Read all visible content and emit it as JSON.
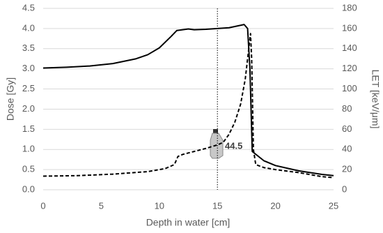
{
  "chart_data": {
    "type": "line",
    "xlabel": "Depth in water [cm]",
    "ylabel": "Dose [Gy]",
    "y2label": "LET [keV/μm]",
    "xlim": [
      0,
      25
    ],
    "xticks": [
      0,
      5,
      10,
      15,
      20,
      25
    ],
    "ylim": [
      0,
      4.5
    ],
    "yticks": [
      {
        "value": 0,
        "label": "0.0"
      },
      {
        "value": 0.5,
        "label": "0.5"
      },
      {
        "value": 1,
        "label": "1.0"
      },
      {
        "value": 1.5,
        "label": "1.5"
      },
      {
        "value": 2,
        "label": "2.0"
      },
      {
        "value": 2.5,
        "label": "2.5"
      },
      {
        "value": 3,
        "label": "3.0"
      },
      {
        "value": 3.5,
        "label": "3.5"
      },
      {
        "value": 4,
        "label": "4.0"
      },
      {
        "value": 4.5,
        "label": "4.5"
      }
    ],
    "y2lim": [
      0,
      180
    ],
    "y2ticks": [
      0,
      20,
      40,
      60,
      80,
      100,
      120,
      140,
      160,
      180
    ],
    "grid": true,
    "vline": 15,
    "annotation": "44.5",
    "series": [
      {
        "color": "#000000",
        "dash": false,
        "x": [
          0,
          2,
          4,
          6,
          8,
          9,
          10,
          11,
          11.5,
          12,
          12.5,
          13,
          14,
          15,
          16,
          17,
          17.3,
          17.6,
          17.8,
          18,
          19,
          20,
          22,
          24,
          25
        ],
        "values": [
          3.02,
          3.04,
          3.07,
          3.13,
          3.25,
          3.35,
          3.52,
          3.8,
          3.95,
          3.97,
          3.99,
          3.97,
          3.98,
          4.0,
          4.02,
          4.08,
          4.1,
          4.0,
          3.0,
          0.95,
          0.72,
          0.6,
          0.47,
          0.38,
          0.35
        ]
      },
      {
        "color": "#000000",
        "dash": true,
        "axis": "y2",
        "x": [
          0,
          3,
          6,
          9,
          10.5,
          11.3,
          11.6,
          12,
          13,
          14,
          15,
          15.5,
          16,
          16.5,
          17,
          17.4,
          17.7,
          17.85,
          17.95,
          18.1,
          18.3,
          19,
          20,
          22,
          24,
          25
        ],
        "values": [
          13.5,
          14,
          15.5,
          18,
          21,
          25,
          33,
          35,
          38,
          41,
          44.5,
          47,
          55,
          67,
          85,
          110,
          140,
          155,
          130,
          40,
          25,
          22,
          20,
          17,
          13,
          12
        ]
      }
    ]
  }
}
